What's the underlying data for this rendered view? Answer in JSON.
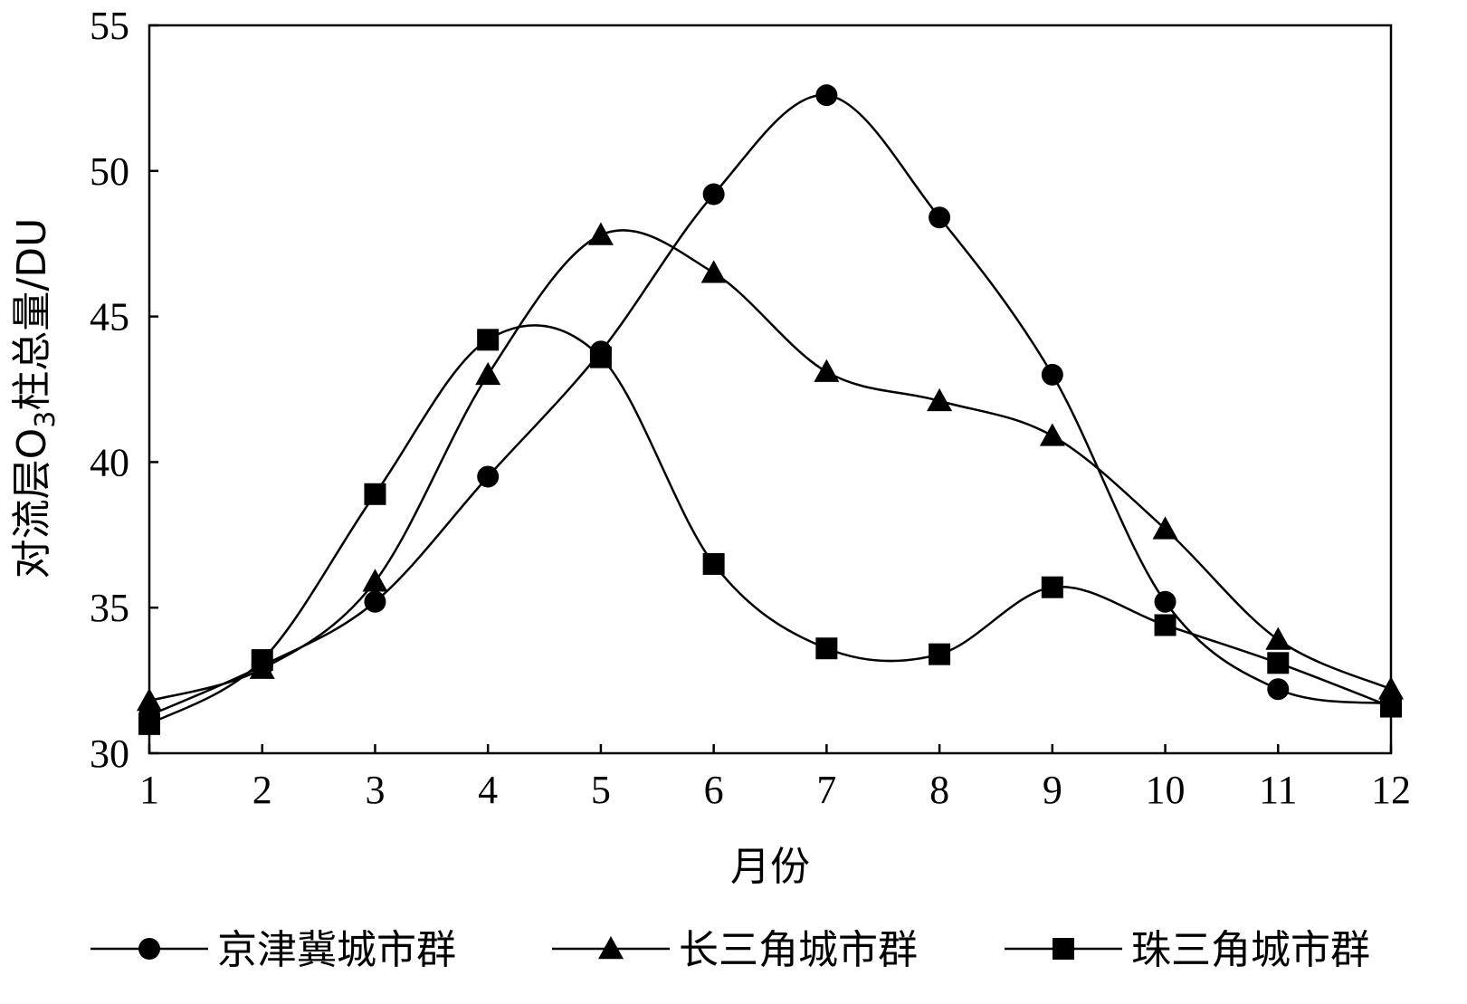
{
  "chart_data": {
    "type": "line",
    "title": "",
    "xlabel": "月份",
    "ylabel": "对流层O3柱总量/DU",
    "ylabel_parts": {
      "prefix": "对流层O",
      "subscript": "3",
      "suffix": "柱总量/DU"
    },
    "x": [
      1,
      2,
      3,
      4,
      5,
      6,
      7,
      8,
      9,
      10,
      11,
      12
    ],
    "xlim": [
      1,
      12
    ],
    "ylim": [
      30,
      55
    ],
    "yticks": [
      30,
      35,
      40,
      45,
      50,
      55
    ],
    "grid": false,
    "legend_position": "bottom",
    "series": [
      {
        "name": "京津冀城市群",
        "marker": "circle",
        "values": [
          31.3,
          33.0,
          35.2,
          39.5,
          43.8,
          49.2,
          52.6,
          48.4,
          43.0,
          35.2,
          32.2,
          31.7
        ]
      },
      {
        "name": "长三角城市群",
        "marker": "triangle",
        "values": [
          31.8,
          32.9,
          35.9,
          43.0,
          47.8,
          46.5,
          43.1,
          42.1,
          40.9,
          37.7,
          33.9,
          32.2
        ]
      },
      {
        "name": "珠三角城市群",
        "marker": "square",
        "values": [
          31.0,
          33.2,
          38.9,
          44.2,
          43.6,
          36.5,
          33.6,
          33.4,
          35.7,
          34.4,
          33.1,
          31.6
        ]
      }
    ]
  }
}
